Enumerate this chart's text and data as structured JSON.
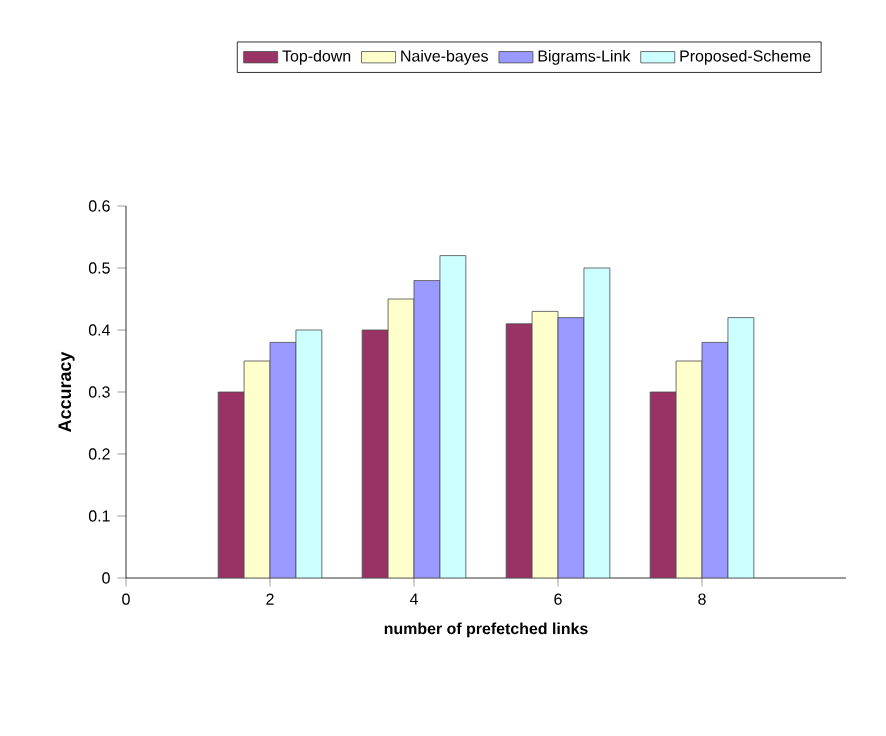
{
  "chart_data": {
    "type": "bar",
    "xlabel": "number of prefetched links",
    "ylabel": "Accuracy",
    "x": [
      2,
      4,
      6,
      8
    ],
    "series": [
      {
        "name": "Top-down",
        "color": "#993366",
        "values": [
          0.3,
          0.4,
          0.41,
          0.3
        ]
      },
      {
        "name": "Naive-bayes",
        "color": "#ffffcc",
        "values": [
          0.35,
          0.45,
          0.43,
          0.35
        ]
      },
      {
        "name": "Bigrams-Link",
        "color": "#9999ff",
        "values": [
          0.38,
          0.48,
          0.42,
          0.38
        ]
      },
      {
        "name": "Proposed-Scheme",
        "color": "#ccffff",
        "values": [
          0.4,
          0.52,
          0.5,
          0.42
        ]
      }
    ],
    "xlim": [
      0,
      10
    ],
    "xticks": [
      0,
      2,
      4,
      6,
      8
    ],
    "ylim": [
      0,
      0.6
    ],
    "yticks": [
      0,
      0.1,
      0.2,
      0.3,
      0.4,
      0.5,
      0.6
    ],
    "legend": "top"
  }
}
